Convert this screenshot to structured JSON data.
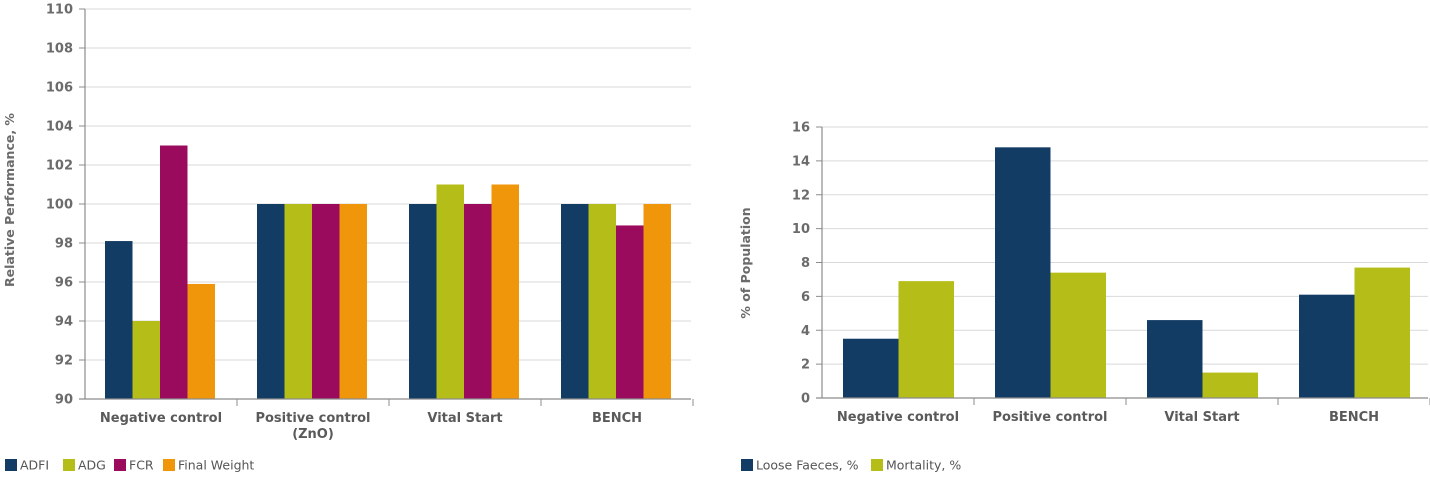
{
  "chart_data": [
    {
      "type": "bar",
      "ylabel": "Relative Performance, %",
      "xlabel": "",
      "ylim": [
        90,
        110
      ],
      "yticks": [
        90,
        92,
        94,
        96,
        98,
        100,
        102,
        104,
        106,
        108,
        110
      ],
      "categories": [
        [
          "Negative control"
        ],
        [
          "Positive control",
          "(ZnO)"
        ],
        [
          "Vital Start"
        ],
        [
          "BENCH"
        ]
      ],
      "grid": true,
      "legend_position": "bottom-left",
      "series": [
        {
          "name": "ADFI",
          "color": "#133c64",
          "values": [
            98.1,
            100,
            100,
            100
          ]
        },
        {
          "name": "ADG",
          "color": "#b5bd19",
          "values": [
            94,
            100,
            101,
            100
          ]
        },
        {
          "name": "FCR",
          "color": "#9a0b5e",
          "values": [
            103,
            100,
            100,
            98.9
          ]
        },
        {
          "name": "Final Weight",
          "color": "#f0960a",
          "values": [
            95.9,
            100,
            101,
            100
          ]
        }
      ]
    },
    {
      "type": "bar",
      "ylabel": "% of Population",
      "xlabel": "",
      "ylim": [
        0,
        16
      ],
      "yticks": [
        0,
        2,
        4,
        6,
        8,
        10,
        12,
        14,
        16
      ],
      "categories": [
        [
          "Negative control"
        ],
        [
          "Positive control"
        ],
        [
          "Vital Start"
        ],
        [
          "BENCH"
        ]
      ],
      "grid": true,
      "legend_position": "bottom-left",
      "series": [
        {
          "name": "Loose Faeces, %",
          "color": "#133c64",
          "values": [
            3.5,
            14.8,
            4.6,
            6.1
          ]
        },
        {
          "name": "Mortality, %",
          "color": "#b5bd19",
          "values": [
            6.9,
            7.4,
            1.5,
            7.7
          ]
        }
      ]
    }
  ]
}
